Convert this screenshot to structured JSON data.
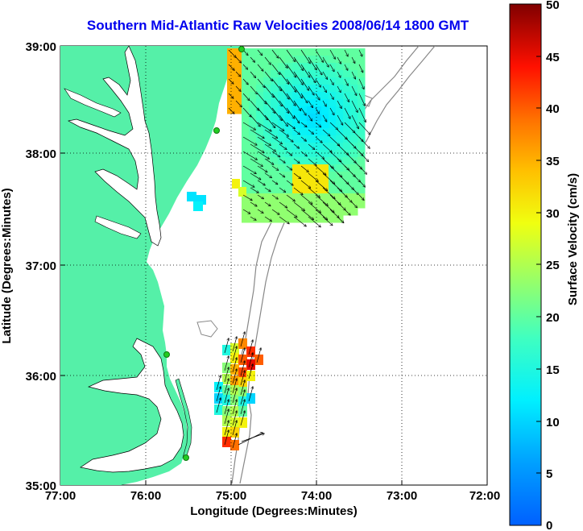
{
  "title": "Southern Mid-Atlantic Raw Velocities 2008/06/14 1800 GMT",
  "xaxis": {
    "label": "Longitude (Degrees:Minutes)",
    "ticks": [
      "77:00",
      "76:00",
      "75:00",
      "74:00",
      "73:00",
      "72:00"
    ]
  },
  "yaxis": {
    "label": "Latitude (Degrees:Minutes)",
    "ticks": [
      "39:00",
      "38:00",
      "37:00",
      "36:00",
      "35:00"
    ]
  },
  "colorbar": {
    "label": "Surface Velocity (cm/s)",
    "ticks": [
      "50",
      "45",
      "40",
      "35",
      "30",
      "25",
      "20",
      "15",
      "10",
      "5",
      "0"
    ]
  },
  "colors": {
    "land": "#55f0a8",
    "title": "#0000ee",
    "station": "#22cc22",
    "isobath": "#888888"
  }
}
